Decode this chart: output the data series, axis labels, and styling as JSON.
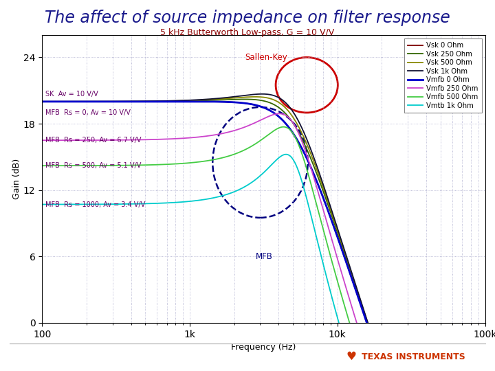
{
  "title": "The affect of source impedance on filter response",
  "subtitle": "5 kHz Butterworth Low-pass, G = 10 V/V",
  "xlabel": "Frequency (Hz)",
  "ylabel": "Gain (dB)",
  "xlim_log": [
    2.0,
    5.0
  ],
  "ylim": [
    0,
    26
  ],
  "yticks": [
    0,
    6,
    12,
    18,
    24
  ],
  "title_color": "#1a1a8c",
  "subtitle_color": "#8b0000",
  "background_color": "#ffffff",
  "grid_color": "#aaaacc",
  "series": [
    {
      "label": "Vsk 0 Ohm",
      "color": "#7b0000",
      "lw": 1.3,
      "type": "SK",
      "dc_db": 20.0,
      "Q": 0.72
    },
    {
      "label": "Vsk 250 Ohm",
      "color": "#336600",
      "lw": 1.3,
      "type": "SK",
      "dc_db": 20.0,
      "Q": 0.8
    },
    {
      "label": "Vsk 500 Ohm",
      "color": "#888800",
      "lw": 1.3,
      "type": "SK",
      "dc_db": 20.0,
      "Q": 0.85
    },
    {
      "label": "Vsk 1k Ohm",
      "color": "#111133",
      "lw": 1.3,
      "type": "SK",
      "dc_db": 20.0,
      "Q": 0.9
    },
    {
      "label": "Vmfb 0 Ohm",
      "color": "#0000cc",
      "lw": 2.0,
      "type": "MFB",
      "dc_db": 20.0,
      "Q": 0.72
    },
    {
      "label": "Vmfb 250 Ohm",
      "color": "#cc44cc",
      "lw": 1.3,
      "type": "MFB",
      "dc_db": 16.5,
      "Q": 1.2
    },
    {
      "label": "Vmfb 500 Ohm",
      "color": "#44cc44",
      "lw": 1.3,
      "type": "MFB",
      "dc_db": 14.2,
      "Q": 1.4
    },
    {
      "label": "Vmtb 1k Ohm",
      "color": "#00cccc",
      "lw": 1.3,
      "type": "MFB",
      "dc_db": 10.7,
      "Q": 1.6
    }
  ],
  "label_sk": "SK  Av = 10 V/V",
  "label_mfb0": "MFB  Rs = 0, Av = 10 V/V",
  "label_mfb250": "MFB  Rs = 250, Av = 6.7 V/V",
  "label_mfb500": "MFB  Rs = 500, Av = 5.1 V/V",
  "label_mfb1k": "MFB  Rs = 1000, Av = 3.4 V/V",
  "label_color": "#660066",
  "sk_annot_text": "Sallen-Key",
  "sk_annot_color": "#cc0000",
  "mfb_annot_text": "MFB",
  "mfb_annot_color": "#000080"
}
